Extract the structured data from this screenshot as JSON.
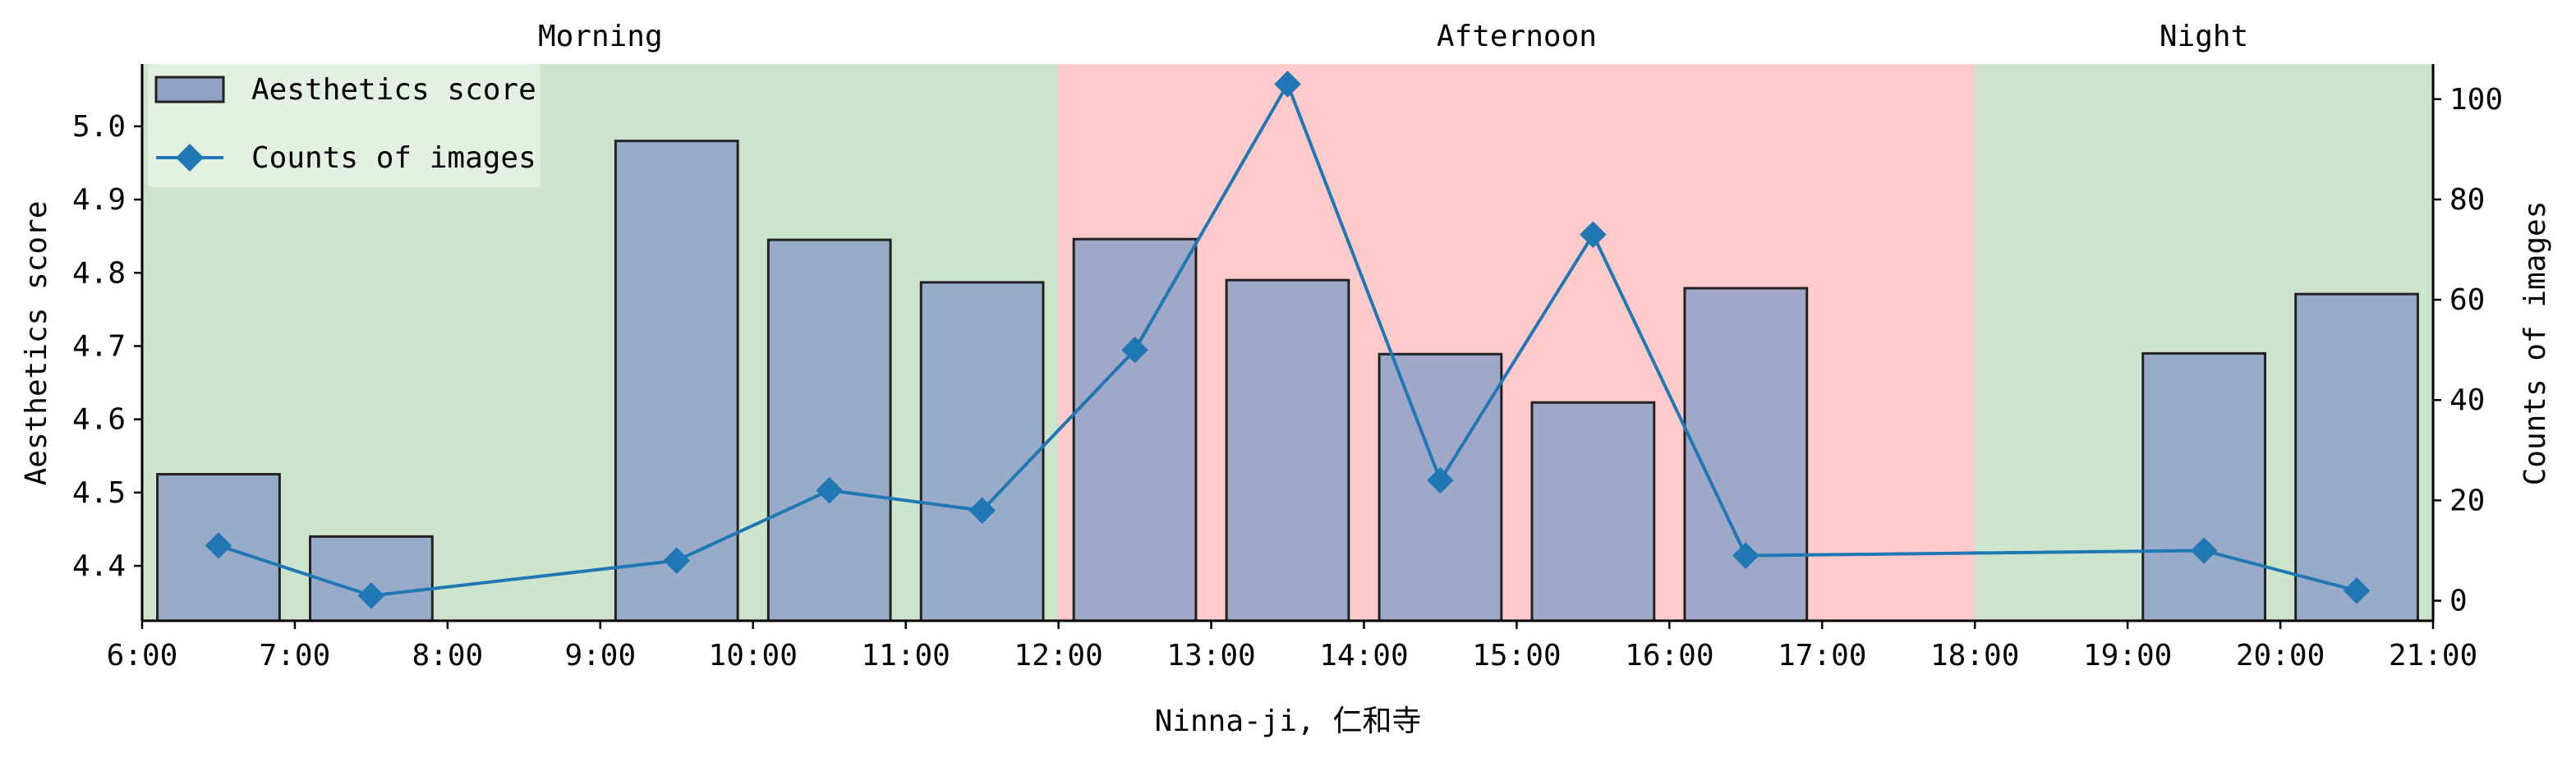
{
  "chart_data": {
    "type": "bar+line",
    "xlabel": "Ninna-ji, 仁和寺",
    "ylabel_left": "Aesthetics score",
    "ylabel_right": "Counts of images",
    "x_ticks": [
      "6:00",
      "7:00",
      "8:00",
      "9:00",
      "10:00",
      "11:00",
      "12:00",
      "13:00",
      "14:00",
      "15:00",
      "16:00",
      "17:00",
      "18:00",
      "19:00",
      "20:00",
      "21:00"
    ],
    "xlim_hours": [
      6,
      21
    ],
    "ylim_left": [
      4.325,
      5.085
    ],
    "yticks_left": [
      "4.4",
      "4.5",
      "4.6",
      "4.7",
      "4.8",
      "4.9",
      "5.0"
    ],
    "ylim_right": [
      -4,
      107
    ],
    "yticks_right": [
      "0",
      "20",
      "40",
      "60",
      "80",
      "100"
    ],
    "periods": [
      {
        "label": "Morning",
        "start": 6,
        "end": 12,
        "color": "#cde5cc"
      },
      {
        "label": "Afternoon",
        "start": 12,
        "end": 18,
        "color": "#fecaca"
      },
      {
        "label": "Night",
        "start": 18,
        "end": 21,
        "color": "#cde5cc"
      }
    ],
    "series": [
      {
        "name": "Aesthetics score",
        "kind": "bar",
        "axis": "left",
        "color": "#8ea2c8",
        "x": [
          6.5,
          7.5,
          9.5,
          10.5,
          11.5,
          12.5,
          13.5,
          14.5,
          15.5,
          16.5,
          19.5,
          20.5
        ],
        "values": [
          4.525,
          4.44,
          4.98,
          4.845,
          4.787,
          4.846,
          4.79,
          4.689,
          4.623,
          4.779,
          4.69,
          4.771
        ]
      },
      {
        "name": "Counts of images",
        "kind": "line",
        "axis": "right",
        "color": "#1f77b4",
        "marker": "diamond",
        "x": [
          6.5,
          7.5,
          9.5,
          10.5,
          11.5,
          12.5,
          13.5,
          14.5,
          15.5,
          16.5,
          19.5,
          20.5
        ],
        "values": [
          11,
          1,
          8,
          22,
          18,
          50,
          103,
          24,
          73,
          9,
          10,
          2
        ]
      }
    ],
    "legend_position": "upper left"
  }
}
